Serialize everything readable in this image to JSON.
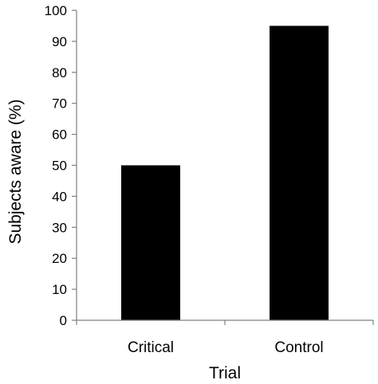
{
  "chart_data": {
    "type": "bar",
    "categories": [
      "Critical",
      "Control"
    ],
    "values": [
      50,
      95
    ],
    "xlabel": "Trial",
    "ylabel": "Subjects aware (%)",
    "ylim": [
      0,
      100
    ],
    "yticks": [
      0,
      10,
      20,
      30,
      40,
      50,
      60,
      70,
      80,
      90,
      100
    ],
    "grid": false,
    "legend": "none",
    "colors": {
      "bar": "#000000",
      "axis": "#7f7f7f",
      "text": "#000000"
    }
  }
}
